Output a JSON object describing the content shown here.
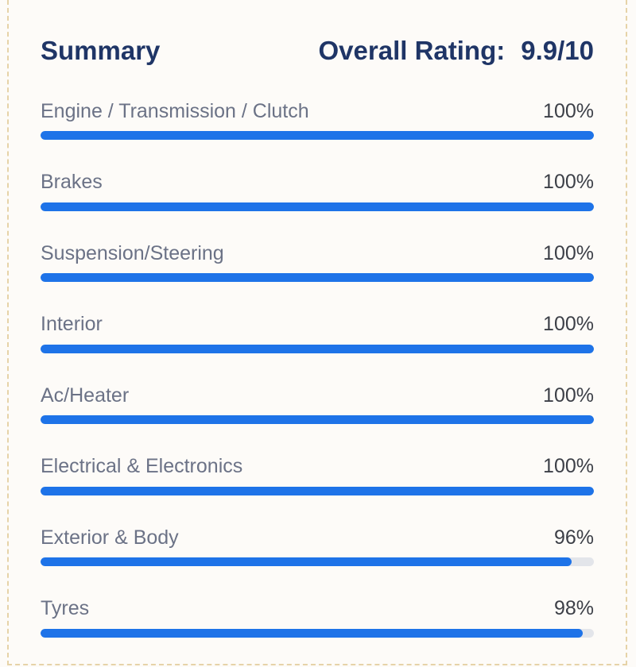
{
  "summary": {
    "title": "Summary",
    "rating_label": "Overall Rating:",
    "rating_value": "9.9/10"
  },
  "categories": [
    {
      "label": "Engine / Transmission / Clutch",
      "value": "100%",
      "percent": 100
    },
    {
      "label": "Brakes",
      "value": "100%",
      "percent": 100
    },
    {
      "label": "Suspension/Steering",
      "value": "100%",
      "percent": 100
    },
    {
      "label": "Interior",
      "value": "100%",
      "percent": 100
    },
    {
      "label": "Ac/Heater",
      "value": "100%",
      "percent": 100
    },
    {
      "label": "Electrical & Electronics",
      "value": "100%",
      "percent": 100
    },
    {
      "label": "Exterior & Body",
      "value": "96%",
      "percent": 96
    },
    {
      "label": "Tyres",
      "value": "98%",
      "percent": 98
    }
  ],
  "colors": {
    "accent": "#1e73e8",
    "title": "#1f3566",
    "track": "#e3e5ea"
  }
}
